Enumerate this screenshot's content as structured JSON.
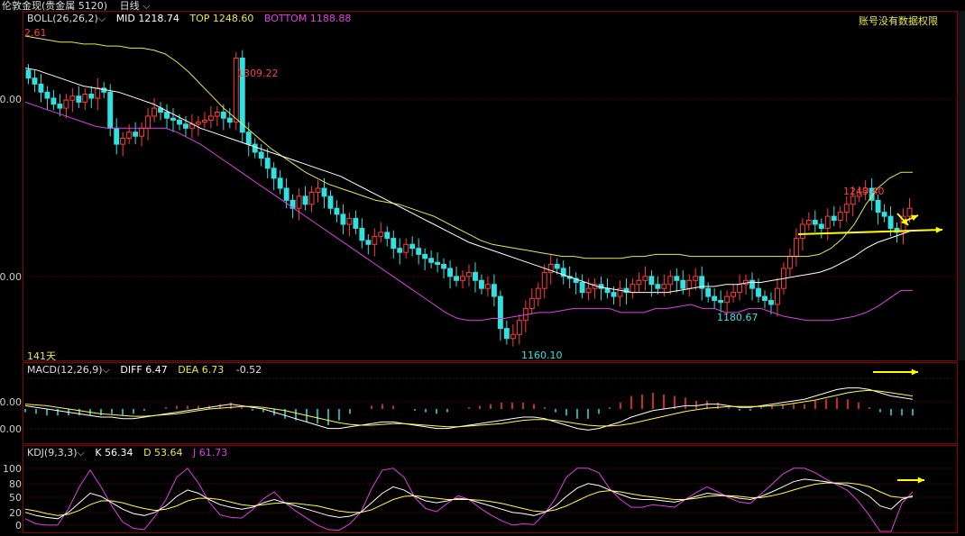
{
  "title_bar": {
    "instrument": "伦敦金现(贵金属 5120)",
    "period": "日线"
  },
  "notice": "账号没有数据权限",
  "boll": {
    "header": "BOLL(26,26,2)",
    "mid_label": "MID",
    "mid": "1218.74",
    "top_label": "TOP",
    "top": "1248.60",
    "bottom_label": "BOTTOM",
    "bottom": "1188.88"
  },
  "macd": {
    "header": "MACD(12,26,9)",
    "diff_label": "DIFF",
    "diff": "6.47",
    "dea_label": "DEA",
    "dea": "6.73",
    "macd": "-0.52"
  },
  "kdj": {
    "header": "KDJ(9,3,3)",
    "k_label": "K",
    "k": "56.34",
    "d_label": "D",
    "d": "53.64",
    "j_label": "J",
    "j": "61.73"
  },
  "annotations": {
    "high_price": "1309.22",
    "low_price": "1160.10",
    "low2_price": "1180.67",
    "recent_high": "1243.40",
    "days": "141天",
    "top_left_partial": "2.61"
  },
  "colors": {
    "up": "#ff3c3c",
    "down": "#33e0e0",
    "mid": "#ffffff",
    "top": "#e8e84a",
    "bottom": "#e040e0",
    "diff": "#ffffff",
    "dea": "#ffff3c",
    "grid": "#8b0000",
    "arrow": "#ffff00"
  },
  "chart_data": [
    {
      "type": "candlestick",
      "title": "伦敦金现 日线",
      "indicators": [
        "BOLL MID",
        "BOLL TOP",
        "BOLL BOTTOM"
      ],
      "ylim": [
        1155,
        1325
      ],
      "note": "approximate daily closes, ~141 bars",
      "closes": [
        1295,
        1292,
        1288,
        1285,
        1282,
        1280,
        1284,
        1286,
        1283,
        1287,
        1285,
        1290,
        1288,
        1270,
        1262,
        1265,
        1268,
        1266,
        1270,
        1276,
        1280,
        1278,
        1275,
        1274,
        1272,
        1270,
        1272,
        1273,
        1274,
        1276,
        1278,
        1275,
        1273,
        1305,
        1268,
        1262,
        1258,
        1255,
        1250,
        1245,
        1240,
        1234,
        1230,
        1236,
        1232,
        1238,
        1240,
        1236,
        1230,
        1227,
        1222,
        1225,
        1220,
        1214,
        1212,
        1216,
        1218,
        1215,
        1210,
        1208,
        1212,
        1210,
        1207,
        1205,
        1203,
        1202,
        1200,
        1196,
        1194,
        1196,
        1198,
        1194,
        1190,
        1192,
        1186,
        1170,
        1165,
        1167,
        1174,
        1180,
        1185,
        1190,
        1198,
        1202,
        1200,
        1196,
        1195,
        1193,
        1188,
        1190,
        1192,
        1190,
        1188,
        1186,
        1190,
        1188,
        1192,
        1194,
        1196,
        1192,
        1190,
        1192,
        1196,
        1194,
        1190,
        1194,
        1196,
        1190,
        1186,
        1184,
        1183,
        1186,
        1188,
        1192,
        1194,
        1190,
        1186,
        1184,
        1182,
        1190,
        1200,
        1206,
        1215,
        1222,
        1224,
        1222,
        1220,
        1226,
        1224,
        1228,
        1232,
        1236,
        1238,
        1240,
        1234,
        1228,
        1226,
        1220,
        1218,
        1226,
        1230
      ],
      "mid": [
        1300,
        1299,
        1297,
        1295,
        1293,
        1291,
        1290,
        1289,
        1288,
        1286,
        1284,
        1282,
        1279,
        1276,
        1273,
        1270,
        1268,
        1266,
        1264,
        1262,
        1260,
        1258,
        1256,
        1254,
        1252,
        1250,
        1248,
        1246,
        1243,
        1240,
        1237,
        1234,
        1231,
        1228,
        1225,
        1222,
        1219,
        1216,
        1213,
        1211,
        1209,
        1207,
        1205,
        1203,
        1201,
        1199,
        1197,
        1195,
        1193,
        1191,
        1190,
        1189,
        1188,
        1188,
        1188,
        1188,
        1189,
        1190,
        1191,
        1191,
        1192,
        1192,
        1193,
        1193,
        1194,
        1195,
        1196,
        1197,
        1198,
        1200,
        1203,
        1206,
        1210,
        1213,
        1215,
        1217,
        1219
      ],
      "top": [
        1316,
        1315,
        1314,
        1313,
        1313,
        1312,
        1312,
        1311,
        1311,
        1310,
        1310,
        1309,
        1307,
        1303,
        1298,
        1292,
        1286,
        1280,
        1275,
        1270,
        1265,
        1260,
        1256,
        1252,
        1248,
        1245,
        1242,
        1240,
        1238,
        1236,
        1234,
        1233,
        1232,
        1230,
        1228,
        1226,
        1223,
        1220,
        1217,
        1214,
        1212,
        1211,
        1210,
        1209,
        1208,
        1207,
        1206,
        1206,
        1205,
        1205,
        1205,
        1205,
        1206,
        1206,
        1207,
        1207,
        1207,
        1206,
        1206,
        1206,
        1206,
        1206,
        1206,
        1206,
        1206,
        1206,
        1206,
        1206,
        1207,
        1210,
        1215,
        1222,
        1232,
        1240,
        1245,
        1248,
        1248
      ],
      "bottom": [
        1283,
        1281,
        1279,
        1277,
        1275,
        1273,
        1271,
        1270,
        1270,
        1270,
        1270,
        1270,
        1270,
        1268,
        1265,
        1262,
        1258,
        1254,
        1250,
        1246,
        1242,
        1238,
        1234,
        1230,
        1226,
        1222,
        1218,
        1214,
        1210,
        1206,
        1202,
        1198,
        1194,
        1190,
        1186,
        1182,
        1178,
        1175,
        1174,
        1174,
        1175,
        1175,
        1176,
        1177,
        1178,
        1178,
        1179,
        1180,
        1180,
        1180,
        1180,
        1178,
        1178,
        1178,
        1180,
        1180,
        1181,
        1182,
        1180,
        1180,
        1178,
        1178,
        1180,
        1180,
        1178,
        1176,
        1175,
        1174,
        1174,
        1174,
        1175,
        1176,
        1178,
        1181,
        1185,
        1189,
        1189
      ]
    },
    {
      "type": "line",
      "title": "MACD(12,26,9)",
      "series": [
        {
          "name": "DIFF",
          "values": [
            2,
            1,
            0,
            -1,
            -2,
            -3,
            -4,
            -5,
            -5,
            -6,
            -6,
            -5,
            -4,
            -3,
            -2,
            -1,
            0,
            1,
            2,
            3,
            2,
            1,
            0,
            -2,
            -4,
            -6,
            -8,
            -10,
            -12,
            -12,
            -11,
            -10,
            -9,
            -8,
            -8,
            -9,
            -10,
            -11,
            -12,
            -12,
            -11,
            -10,
            -9,
            -8,
            -7,
            -6,
            -5,
            -5,
            -6,
            -8,
            -10,
            -12,
            -13,
            -12,
            -10,
            -8,
            -5,
            -3,
            -1,
            0,
            1,
            2,
            2,
            3,
            3,
            2,
            1,
            1,
            2,
            3,
            4,
            5,
            6,
            8,
            10,
            12,
            13,
            13,
            12,
            10,
            8,
            7,
            6
          ]
        },
        {
          "name": "DEA",
          "values": [
            3,
            2.5,
            2,
            1,
            0,
            -1,
            -2,
            -3,
            -3.5,
            -4,
            -4.5,
            -4.5,
            -4,
            -3.5,
            -3,
            -2,
            -1,
            0,
            0.5,
            1,
            1.5,
            1.5,
            1,
            0,
            -1,
            -2.5,
            -4,
            -5.5,
            -7,
            -8.5,
            -9.5,
            -10,
            -10,
            -9.5,
            -9,
            -9,
            -9.5,
            -10,
            -10.5,
            -11,
            -11,
            -10.5,
            -10,
            -9.5,
            -9,
            -8,
            -7,
            -6.5,
            -6.5,
            -7,
            -8,
            -9,
            -10,
            -10.5,
            -10.5,
            -10,
            -9,
            -7.5,
            -6,
            -4.5,
            -3,
            -1.5,
            -0.5,
            0.5,
            1,
            1.5,
            1.5,
            1.5,
            1.5,
            2,
            2.5,
            3.5,
            4.5,
            5.5,
            7,
            8.5,
            10,
            11,
            11.5,
            11,
            10,
            9,
            8
          ]
        }
      ],
      "ylim": [
        -20,
        20
      ]
    },
    {
      "type": "line",
      "title": "KDJ(9,3,3)",
      "series": [
        {
          "name": "K",
          "values": [
            30,
            25,
            22,
            20,
            30,
            45,
            60,
            55,
            45,
            35,
            28,
            25,
            30,
            40,
            55,
            65,
            60,
            50,
            42,
            38,
            35,
            38,
            45,
            50,
            45,
            40,
            35,
            30,
            25,
            22,
            24,
            30,
            45,
            60,
            70,
            65,
            55,
            48,
            45,
            48,
            52,
            50,
            45,
            40,
            35,
            30,
            28,
            25,
            30,
            40,
            55,
            68,
            75,
            72,
            65,
            58,
            52,
            50,
            50,
            48,
            46,
            50,
            55,
            60,
            58,
            55,
            52,
            50,
            55,
            62,
            70,
            78,
            82,
            80,
            78,
            75,
            72,
            65,
            55,
            40,
            35,
            50,
            56
          ]
        },
        {
          "name": "D",
          "values": [
            35,
            32,
            28,
            25,
            27,
            33,
            42,
            48,
            48,
            45,
            40,
            36,
            33,
            35,
            40,
            48,
            52,
            52,
            50,
            46,
            42,
            40,
            42,
            44,
            45,
            44,
            42,
            40,
            36,
            32,
            30,
            30,
            34,
            42,
            50,
            55,
            56,
            54,
            52,
            50,
            50,
            50,
            49,
            47,
            44,
            40,
            36,
            32,
            31,
            34,
            40,
            48,
            56,
            62,
            64,
            62,
            59,
            56,
            54,
            52,
            50,
            50,
            52,
            55,
            56,
            56,
            55,
            53,
            53,
            56,
            60,
            65,
            70,
            74,
            76,
            76,
            76,
            74,
            70,
            62,
            55,
            53,
            54
          ]
        },
        {
          "name": "J",
          "values": [
            20,
            12,
            10,
            10,
            36,
            70,
            96,
            70,
            40,
            15,
            5,
            3,
            24,
            50,
            85,
            99,
            76,
            46,
            26,
            22,
            21,
            34,
            51,
            62,
            45,
            32,
            21,
            10,
            3,
            2,
            12,
            30,
            67,
            96,
            99,
            85,
            53,
            36,
            31,
            44,
            56,
            50,
            37,
            26,
            17,
            10,
            12,
            11,
            28,
            52,
            85,
            99,
            99,
            92,
            67,
            50,
            38,
            38,
            42,
            40,
            38,
            50,
            61,
            70,
            62,
            53,
            46,
            44,
            59,
            74,
            90,
            99,
            99,
            92,
            82,
            73,
            64,
            47,
            25,
            0,
            0,
            44,
            62
          ]
        }
      ],
      "ylim": [
        0,
        110
      ]
    }
  ]
}
